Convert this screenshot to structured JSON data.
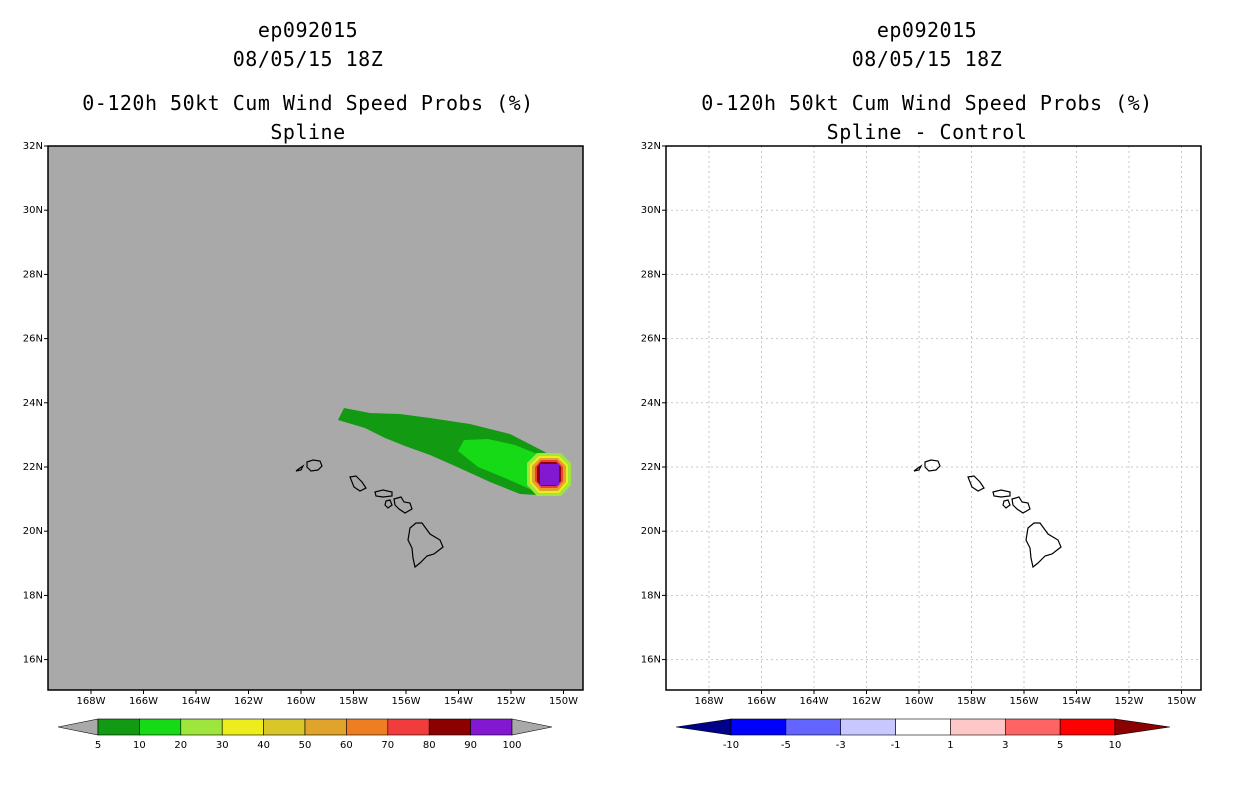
{
  "left": {
    "storm_id": "ep092015",
    "datetime": "08/05/15 18Z",
    "product": "0-120h 50kt Cum Wind Speed Probs (%)",
    "subtitle": "Spline",
    "background_color": "#a9a9a9",
    "lat_labels": [
      "32N",
      "30N",
      "28N",
      "26N",
      "24N",
      "22N",
      "20N",
      "18N",
      "16N"
    ],
    "lon_labels": [
      "168W",
      "166W",
      "164W",
      "162W",
      "160W",
      "158W",
      "156W",
      "154W",
      "152W",
      "150W"
    ],
    "colorbar": {
      "labels": [
        "5",
        "10",
        "20",
        "30",
        "40",
        "50",
        "60",
        "70",
        "80",
        "90",
        "100"
      ],
      "colors": [
        "#a9a9a9",
        "#129a12",
        "#15da15",
        "#9ee63c",
        "#eded1e",
        "#d9c72a",
        "#e1a42a",
        "#ed7f22",
        "#f03c3c",
        "#8c0000",
        "#8218d2",
        "#a9a9a9"
      ]
    }
  },
  "right": {
    "storm_id": "ep092015",
    "datetime": "08/05/15 18Z",
    "product": "0-120h 50kt Cum Wind Speed Probs (%)",
    "subtitle": "Spline - Control",
    "lat_labels": [
      "32N",
      "30N",
      "28N",
      "26N",
      "24N",
      "22N",
      "20N",
      "18N",
      "16N"
    ],
    "lon_labels": [
      "168W",
      "166W",
      "164W",
      "162W",
      "160W",
      "158W",
      "156W",
      "154W",
      "152W",
      "150W"
    ],
    "colorbar": {
      "labels": [
        "-10",
        "-5",
        "-3",
        "-1",
        "1",
        "3",
        "5",
        "10"
      ],
      "colors": [
        "#00008b",
        "#0000ff",
        "#6464ff",
        "#c8c8ff",
        "#ffffff",
        "#ffc8c8",
        "#ff6464",
        "#ff0000",
        "#8b0000"
      ]
    }
  }
}
